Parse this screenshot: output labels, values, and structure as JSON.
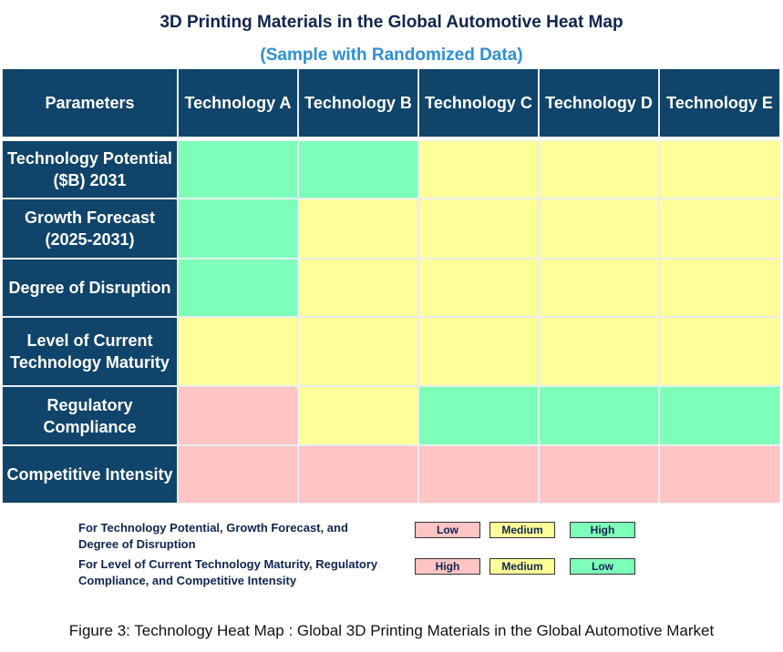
{
  "colors": {
    "header": "#10446a",
    "high_good": "#7dffb9",
    "medium": "#ffff99",
    "low_bad": "#ffc4c4"
  },
  "chart_data": {
    "type": "heatmap",
    "title": "3D Printing Materials in the Global Automotive Heat Map",
    "subtitle": "(Sample with Randomized Data)",
    "corner_label": "Parameters",
    "columns": [
      "Technology A",
      "Technology B",
      "Technology C",
      "Technology D",
      "Technology E"
    ],
    "rows": [
      "Technology Potential ($B) 2031",
      "Growth Forecast (2025-2031)",
      "Degree of Disruption",
      "Level of Current Technology Maturity",
      "Regulatory Compliance",
      "Competitive Intensity"
    ],
    "values": [
      [
        "green",
        "green",
        "yellow",
        "yellow",
        "yellow"
      ],
      [
        "green",
        "yellow",
        "yellow",
        "yellow",
        "yellow"
      ],
      [
        "green",
        "yellow",
        "yellow",
        "yellow",
        "yellow"
      ],
      [
        "yellow",
        "yellow",
        "yellow",
        "yellow",
        "yellow"
      ],
      [
        "pink",
        "yellow",
        "green",
        "green",
        "green"
      ],
      [
        "pink",
        "pink",
        "pink",
        "pink",
        "pink"
      ]
    ]
  },
  "legend": [
    {
      "text": "For Technology Potential, Growth Forecast, and Degree of Disruption",
      "items": [
        {
          "label": "Low",
          "color": "pink"
        },
        {
          "label": "Medium",
          "color": "yellow"
        },
        {
          "label": "High",
          "color": "green"
        }
      ]
    },
    {
      "text": "For Level of Current Technology Maturity, Regulatory Compliance, and Competitive Intensity",
      "items": [
        {
          "label": "High",
          "color": "pink"
        },
        {
          "label": "Medium",
          "color": "yellow"
        },
        {
          "label": "Low",
          "color": "green"
        }
      ]
    }
  ],
  "caption": "Figure 3: Technology Heat Map : Global 3D Printing Materials in the Global Automotive Market"
}
